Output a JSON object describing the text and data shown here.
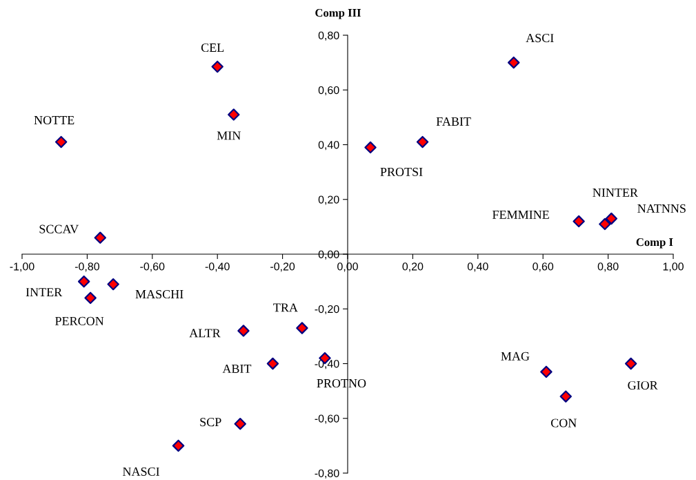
{
  "chart_data": {
    "type": "scatter",
    "xlabel": "Comp I",
    "ylabel": "Comp III",
    "marker": "diamond",
    "x": [
      -0.4,
      -0.35,
      -0.88,
      -0.76,
      -0.81,
      -0.72,
      -0.79,
      -0.32,
      -0.14,
      -0.23,
      -0.07,
      -0.33,
      -0.52,
      0.51,
      0.23,
      0.07,
      0.71,
      0.79,
      0.81,
      0.61,
      0.67,
      0.87
    ],
    "series": [
      {
        "color": "#ff0000",
        "values": [
          0.685,
          0.51,
          0.41,
          0.06,
          -0.1,
          -0.11,
          -0.16,
          -0.28,
          -0.27,
          -0.4,
          -0.38,
          -0.62,
          -0.7,
          0.7,
          0.41,
          0.39,
          0.12,
          0.11,
          0.13,
          -0.43,
          -0.52,
          -0.4
        ]
      }
    ],
    "annotations": [
      {
        "text": "CEL",
        "x": -0.4,
        "y": 0.685
      },
      {
        "text": "MIN",
        "x": -0.35,
        "y": 0.51
      },
      {
        "text": "NOTTE",
        "x": -0.88,
        "y": 0.41
      },
      {
        "text": "SCCAV",
        "x": -0.76,
        "y": 0.06
      },
      {
        "text": "INTER",
        "x": -0.81,
        "y": -0.1
      },
      {
        "text": "MASCHI",
        "x": -0.72,
        "y": -0.11
      },
      {
        "text": "PERCON",
        "x": -0.79,
        "y": -0.16
      },
      {
        "text": "ALTR",
        "x": -0.32,
        "y": -0.28
      },
      {
        "text": "TRA",
        "x": -0.14,
        "y": -0.27
      },
      {
        "text": "ABIT",
        "x": -0.23,
        "y": -0.4
      },
      {
        "text": "PROTNO",
        "x": -0.07,
        "y": -0.38
      },
      {
        "text": "SCP",
        "x": -0.33,
        "y": -0.62
      },
      {
        "text": "NASCI",
        "x": -0.52,
        "y": -0.7
      },
      {
        "text": "ASCI",
        "x": 0.51,
        "y": 0.7
      },
      {
        "text": "FABIT",
        "x": 0.23,
        "y": 0.41
      },
      {
        "text": "PROTSI",
        "x": 0.07,
        "y": 0.39
      },
      {
        "text": "FEMMINE",
        "x": 0.71,
        "y": 0.12
      },
      {
        "text": "NINTER",
        "x": 0.79,
        "y": 0.11
      },
      {
        "text": "NATNNS",
        "x": 0.81,
        "y": 0.13
      },
      {
        "text": "MAG",
        "x": 0.61,
        "y": -0.43
      },
      {
        "text": "CON",
        "x": 0.67,
        "y": -0.52
      },
      {
        "text": "GIOR",
        "x": 0.87,
        "y": -0.4
      }
    ],
    "xlim": [
      -1.0,
      1.0
    ],
    "xticks": [
      {
        "value": -1.0,
        "label": "-1,00"
      },
      {
        "value": -0.8,
        "label": "-0,80"
      },
      {
        "value": -0.6,
        "label": "-0,60"
      },
      {
        "value": -0.4,
        "label": "-0,40"
      },
      {
        "value": -0.2,
        "label": "-0,20"
      },
      {
        "value": 0,
        "label": "0,00"
      },
      {
        "value": 0.2,
        "label": "0,20"
      },
      {
        "value": 0.4,
        "label": "0,40"
      },
      {
        "value": 0.6,
        "label": "0,60"
      },
      {
        "value": 0.8,
        "label": "0,80"
      },
      {
        "value": 1.0,
        "label": "1,00"
      }
    ],
    "ylim": [
      -0.8,
      0.8
    ],
    "yticks": [
      {
        "value": -0.8,
        "label": "-0,80"
      },
      {
        "value": -0.6,
        "label": "-0,60"
      },
      {
        "value": -0.4,
        "label": "-0,40"
      },
      {
        "value": -0.2,
        "label": "-0,20"
      },
      {
        "value": 0,
        "label": "0,00"
      },
      {
        "value": 0.2,
        "label": "0,20"
      },
      {
        "value": 0.4,
        "label": "0,40"
      },
      {
        "value": 0.6,
        "label": "0,60"
      },
      {
        "value": 0.8,
        "label": "0,80"
      }
    ]
  }
}
